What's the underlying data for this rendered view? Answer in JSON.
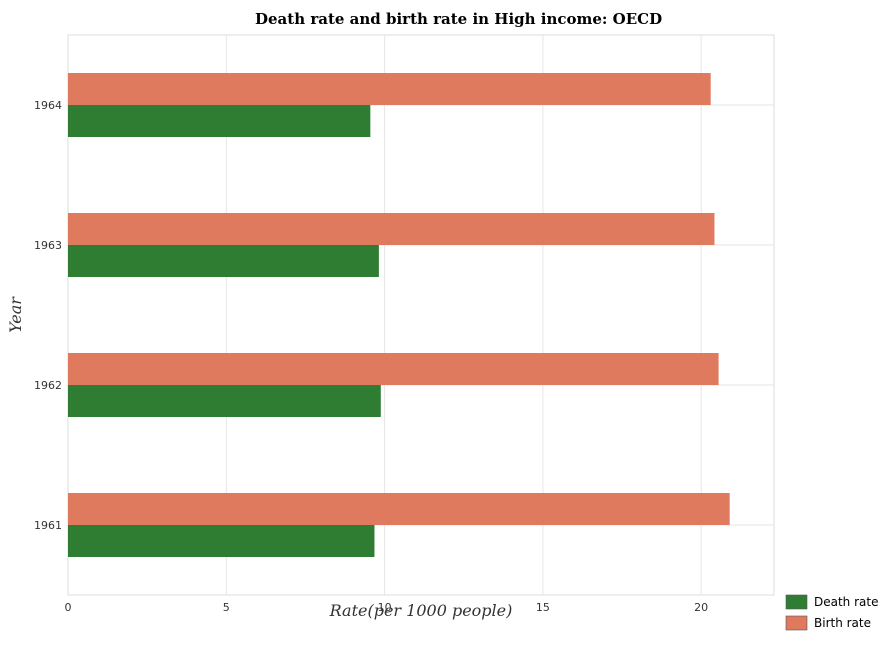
{
  "chart_data": {
    "type": "bar",
    "orientation": "horizontal",
    "title": "Death rate and birth rate in High income: OECD",
    "xlabel": "Rate(per 1000 people)",
    "ylabel": "Year",
    "categories": [
      "1961",
      "1962",
      "1963",
      "1964"
    ],
    "series": [
      {
        "name": "Death rate",
        "color": "#2e7d32",
        "values": [
          9.68,
          9.88,
          9.82,
          9.55
        ]
      },
      {
        "name": "Birth rate",
        "color": "#e07a5f",
        "values": [
          20.9,
          20.55,
          20.42,
          20.3
        ]
      }
    ],
    "xlim": [
      0,
      22.3
    ],
    "xticks": [
      0,
      5,
      10,
      15,
      20
    ],
    "grid": true,
    "legend_position": "bottom-right"
  }
}
